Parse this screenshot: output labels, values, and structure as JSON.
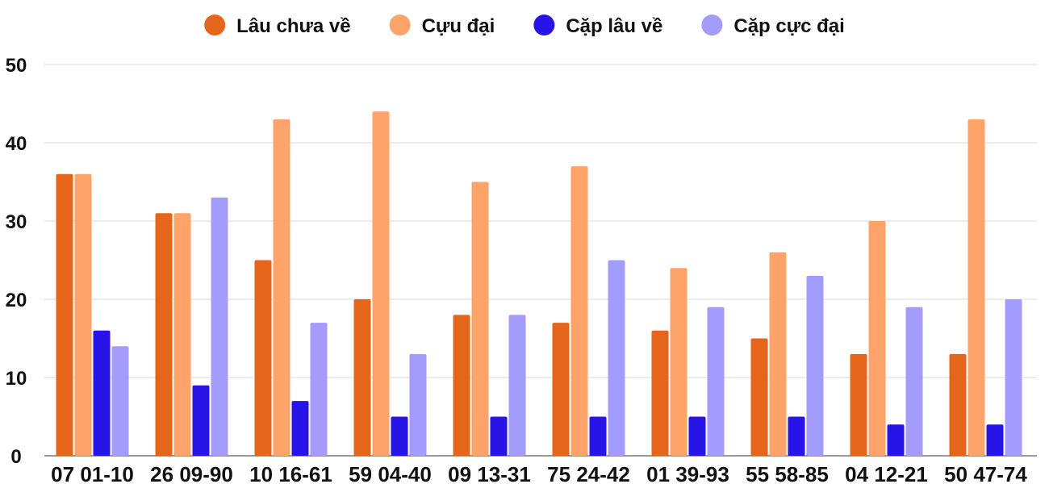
{
  "chart_data": {
    "type": "bar",
    "categories": [
      "07 01-10",
      "26 09-90",
      "10 16-61",
      "59 04-40",
      "09 13-31",
      "75 24-42",
      "01 39-93",
      "55 58-85",
      "04 12-21",
      "50 47-74"
    ],
    "series": [
      {
        "name": "Lâu chưa về",
        "color": "#e5661b",
        "values": [
          36,
          31,
          25,
          20,
          18,
          17,
          16,
          15,
          13,
          13
        ]
      },
      {
        "name": "Cựu đại",
        "color": "#fea46b",
        "values": [
          36,
          31,
          43,
          44,
          35,
          37,
          24,
          26,
          30,
          43
        ]
      },
      {
        "name": "Cặp lâu về",
        "color": "#2814e6",
        "values": [
          16,
          9,
          7,
          5,
          5,
          5,
          5,
          5,
          4,
          4
        ]
      },
      {
        "name": "Cặp cực đại",
        "color": "#a39cfd",
        "values": [
          14,
          33,
          17,
          13,
          18,
          25,
          19,
          23,
          19,
          20
        ]
      }
    ],
    "ylim": [
      0,
      50
    ],
    "yticks": [
      0,
      10,
      20,
      30,
      40,
      50
    ],
    "grid": true,
    "legend": "top-center",
    "title": "",
    "xlabel": "",
    "ylabel": ""
  }
}
